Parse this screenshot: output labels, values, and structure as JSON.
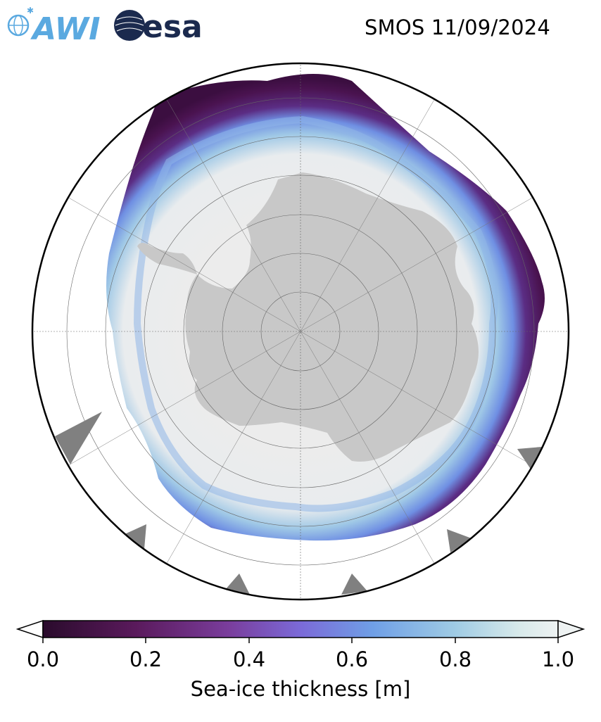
{
  "logos": {
    "awi_text": "AWI",
    "esa_text": "esa"
  },
  "header": {
    "title": "SMOS 11/09/2024"
  },
  "colorbar": {
    "label": "Sea-ice thickness [m]",
    "ticks": [
      "0.0",
      "0.2",
      "0.4",
      "0.6",
      "0.8",
      "1.0"
    ],
    "range": [
      0.0,
      1.0
    ],
    "extend": "both",
    "colormap_stops": [
      "#2a0b2c",
      "#5a1a5c",
      "#7a3d9c",
      "#7b6ad8",
      "#6f9fe6",
      "#9fcbe4",
      "#d6e9ea",
      "#eef2f2"
    ]
  },
  "map": {
    "projection": "south polar stereographic",
    "land_color": "#c8c8c8",
    "no_data_color": "#808080",
    "ocean_color": "#ffffff",
    "grid": true
  }
}
